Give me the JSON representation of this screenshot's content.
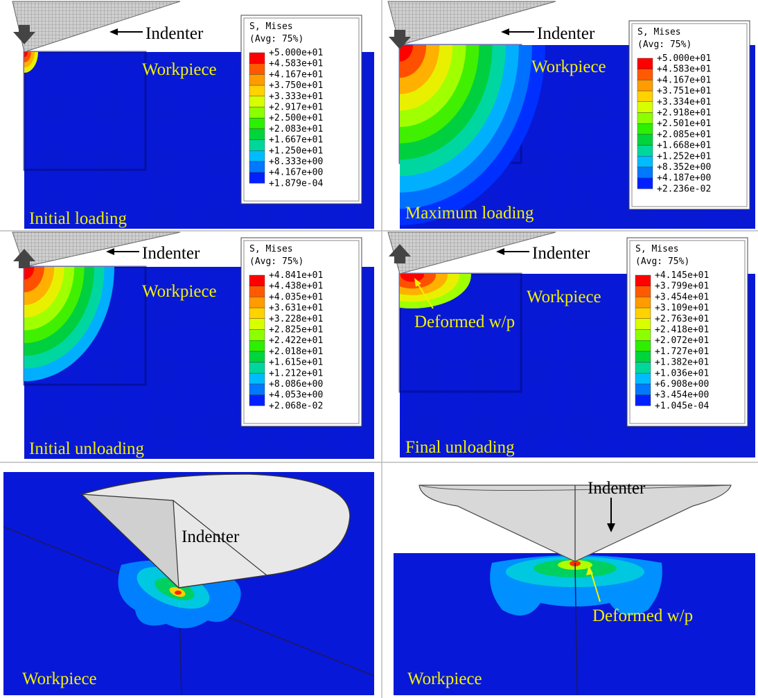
{
  "panels": [
    {
      "label": "Initial loading",
      "indenter": "Indenter",
      "workpiece": "Workpiece",
      "legend": {
        "title": "S, Mises",
        "subtitle": "(Avg: 75%)",
        "levels": [
          "+5.000e+01",
          "+4.583e+01",
          "+4.167e+01",
          "+3.750e+01",
          "+3.333e+01",
          "+2.917e+01",
          "+2.500e+01",
          "+2.083e+01",
          "+1.667e+01",
          "+1.250e+01",
          "+8.333e+00",
          "+4.167e+00",
          "+1.879e-04"
        ]
      }
    },
    {
      "label": "Maximum loading",
      "indenter": "Indenter",
      "workpiece": "Workpiece",
      "legend": {
        "title": "S, Mises",
        "subtitle": "(Avg: 75%)",
        "levels": [
          "+5.000e+01",
          "+4.583e+01",
          "+4.167e+01",
          "+3.751e+01",
          "+3.334e+01",
          "+2.918e+01",
          "+2.501e+01",
          "+2.085e+01",
          "+1.668e+01",
          "+1.252e+01",
          "+8.352e+00",
          "+4.187e+00",
          "+2.236e-02"
        ]
      }
    },
    {
      "label": "Initial unloading",
      "indenter": "Indenter",
      "workpiece": "Workpiece",
      "legend": {
        "title": "S, Mises",
        "subtitle": "(Avg: 75%)",
        "levels": [
          "+4.841e+01",
          "+4.438e+01",
          "+4.035e+01",
          "+3.631e+01",
          "+3.228e+01",
          "+2.825e+01",
          "+2.422e+01",
          "+2.018e+01",
          "+1.615e+01",
          "+1.212e+01",
          "+8.086e+00",
          "+4.053e+00",
          "+2.068e-02"
        ]
      }
    },
    {
      "label": "Final unloading",
      "indenter": "Indenter",
      "workpiece": "Workpiece",
      "deformed": "Deformed w/p",
      "legend": {
        "title": "S, Mises",
        "subtitle": "(Avg: 75%)",
        "levels": [
          "+4.145e+01",
          "+3.799e+01",
          "+3.454e+01",
          "+3.109e+01",
          "+2.763e+01",
          "+2.418e+01",
          "+2.072e+01",
          "+1.727e+01",
          "+1.382e+01",
          "+1.036e+01",
          "+6.908e+00",
          "+3.454e+00",
          "+1.045e-04"
        ]
      }
    },
    {
      "indenter": "Indenter",
      "workpiece": "Workpiece"
    },
    {
      "indenter": "Indenter",
      "workpiece": "Workpiece",
      "deformed": "Deformed w/p"
    }
  ]
}
